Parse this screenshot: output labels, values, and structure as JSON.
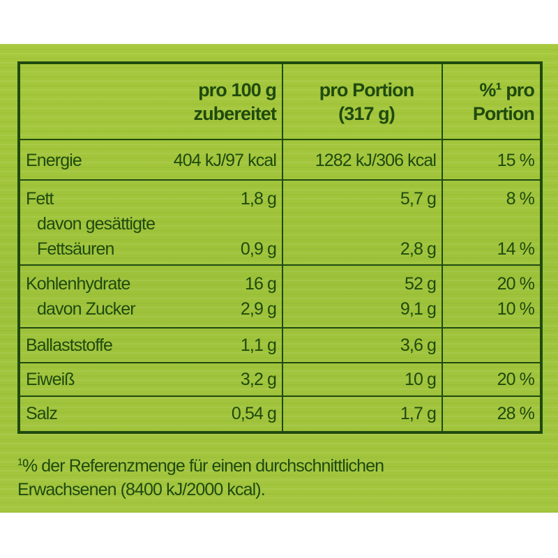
{
  "header": {
    "col1": [
      "pro 100 g",
      "zubereitet"
    ],
    "col2": [
      "pro Portion",
      "(317 g)"
    ],
    "col3": [
      "%¹ pro",
      "Portion"
    ]
  },
  "rows": [
    {
      "label": "Energie",
      "per100": "404 kJ/97 kcal",
      "portion": "1282 kJ/306 kcal",
      "pct": "15 %"
    },
    {
      "label": "Fett",
      "per100": "1,8 g",
      "portion": "5,7 g",
      "pct": "8 %"
    },
    {
      "label": "davon gesättigte",
      "label2": "Fettsäuren",
      "per100": "0,9 g",
      "portion": "2,8 g",
      "pct": "14 %"
    },
    {
      "label": "Kohlenhydrate",
      "per100": "16 g",
      "portion": "52 g",
      "pct": "20 %"
    },
    {
      "label": "davon Zucker",
      "per100": "2,9 g",
      "portion": "9,1 g",
      "pct": "10 %"
    },
    {
      "label": "Ballaststoffe",
      "per100": "1,1 g",
      "portion": "3,6 g",
      "pct": ""
    },
    {
      "label": "Eiweiß",
      "per100": "3,2 g",
      "portion": "10 g",
      "pct": "20 %"
    },
    {
      "label": "Salz",
      "per100": "0,54 g",
      "portion": "1,7 g",
      "pct": "28 %"
    }
  ],
  "footnote": {
    "mark": "1",
    "line1": "% der Referenzmenge für einen durchschnittlichen",
    "line2": "Erwachsenen (8400 kJ/2000 kcal)."
  },
  "colors": {
    "background": "#a2c53c",
    "text": "#1f4a0e"
  }
}
